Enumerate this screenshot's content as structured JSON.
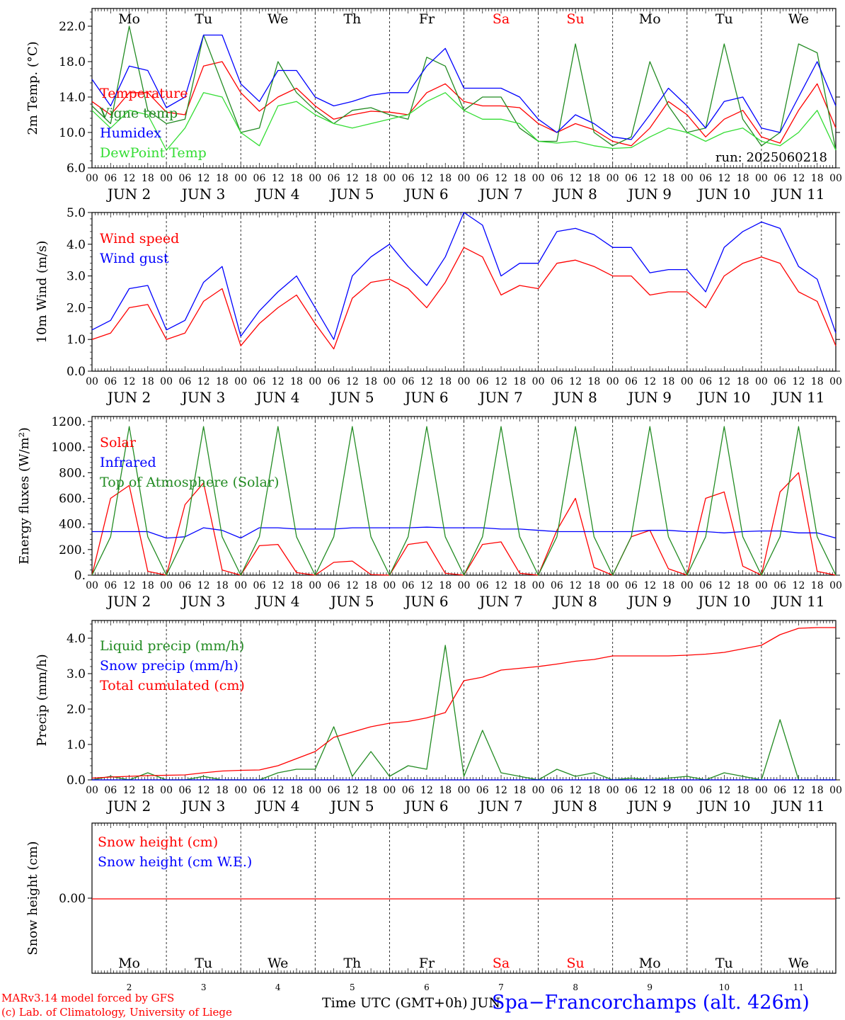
{
  "colors": {
    "red": "#ff0000",
    "green": "#228b22",
    "blue": "#0000ff",
    "lime": "#33dd33",
    "black": "#000000"
  },
  "days": {
    "weekday_labels": [
      "Mo",
      "Tu",
      "We",
      "Th",
      "Fr",
      "Sa",
      "Su",
      "Mo",
      "Tu",
      "We"
    ],
    "weekend_flags": [
      false,
      false,
      false,
      false,
      false,
      true,
      true,
      false,
      false,
      false
    ],
    "date_labels": [
      "JUN  2",
      "JUN  3",
      "JUN  4",
      "JUN  5",
      "JUN  6",
      "JUN  7",
      "JUN  8",
      "JUN  9",
      "JUN 10",
      "JUN 11"
    ],
    "bottom_day_numbers": [
      "2",
      "3",
      "4",
      "5",
      "6",
      "7",
      "8",
      "9",
      "10",
      "11"
    ],
    "hour_ticks": [
      "00",
      "06",
      "12",
      "18"
    ],
    "final_tick": "00"
  },
  "run_label": "run: 2025060218",
  "footer": {
    "credit_line1": "MARv3.14 model forced by GFS",
    "credit_line2": "(c) Lab. of Climatology, University of Liege",
    "time_axis": "Time UTC (GMT+0h) JUN",
    "station": "Spa−Francorchamps (alt. 426m)"
  },
  "chart_data": [
    {
      "type": "line",
      "ylabel": "2m Temp. (°C)",
      "ylim": [
        6.0,
        24.0
      ],
      "yticks": [
        6.0,
        10.0,
        14.0,
        18.0,
        22.0
      ],
      "ytick_labels": [
        "6.0",
        "10.0",
        "14.0",
        "18.0",
        "22.0"
      ],
      "x_unit": "hours since JUN 2 00 UTC",
      "x_step_hours": 6,
      "series": [
        {
          "name": "Temperature",
          "color": "#ff0000",
          "values": [
            13.5,
            12.0,
            14.5,
            14.5,
            12.3,
            12.0,
            17.5,
            18.0,
            14.5,
            12.4,
            14.0,
            15.0,
            13.0,
            11.5,
            12.0,
            12.4,
            12.3,
            12.0,
            14.5,
            15.5,
            13.5,
            13.0,
            13.0,
            12.8,
            11.0,
            10.0,
            11.0,
            10.3,
            9.0,
            8.5,
            10.5,
            13.5,
            12.0,
            9.5,
            11.5,
            12.5,
            9.5,
            8.8,
            12.5,
            15.5,
            10.5
          ]
        },
        {
          "name": "Vigne temp",
          "color": "#228b22",
          "values": [
            13.0,
            11.0,
            22.0,
            12.5,
            11.0,
            11.5,
            21.0,
            15.5,
            10.0,
            10.5,
            18.0,
            14.5,
            12.5,
            11.0,
            12.5,
            12.8,
            12.0,
            11.5,
            18.5,
            17.5,
            12.5,
            14.0,
            14.0,
            10.5,
            9.0,
            9.0,
            20.0,
            10.0,
            8.5,
            9.5,
            18.0,
            13.0,
            10.0,
            10.5,
            20.0,
            11.5,
            8.5,
            10.0,
            20.0,
            19.0,
            8.0
          ]
        },
        {
          "name": "Humidex",
          "color": "#0000ff",
          "values": [
            16.0,
            13.0,
            17.5,
            17.0,
            12.8,
            14.0,
            21.0,
            21.0,
            15.5,
            13.5,
            17.0,
            17.0,
            14.0,
            13.0,
            13.5,
            14.2,
            14.5,
            14.5,
            17.5,
            19.5,
            15.0,
            15.0,
            15.0,
            14.0,
            11.5,
            10.0,
            12.0,
            11.0,
            9.5,
            9.2,
            12.0,
            15.0,
            13.0,
            10.5,
            13.5,
            14.0,
            10.5,
            10.0,
            14.0,
            18.0,
            13.0
          ]
        },
        {
          "name": "DewPoint Temp",
          "color": "#33dd33",
          "values": [
            12.5,
            10.5,
            12.5,
            12.0,
            8.0,
            10.5,
            14.5,
            14.0,
            10.0,
            8.5,
            13.0,
            13.5,
            12.0,
            11.0,
            10.5,
            11.0,
            11.5,
            12.0,
            13.5,
            14.5,
            12.5,
            11.5,
            11.5,
            11.0,
            9.0,
            8.8,
            9.0,
            8.5,
            8.2,
            8.3,
            9.5,
            10.5,
            10.0,
            9.0,
            10.0,
            10.5,
            9.0,
            8.5,
            10.0,
            12.5,
            8.0
          ]
        }
      ]
    },
    {
      "type": "line",
      "ylabel": "10m Wind (m/s)",
      "ylim": [
        0.0,
        5.0
      ],
      "yticks": [
        0.0,
        1.0,
        2.0,
        3.0,
        4.0,
        5.0
      ],
      "ytick_labels": [
        "0.0",
        "1.0",
        "2.0",
        "3.0",
        "4.0",
        "5.0"
      ],
      "x_unit": "hours since JUN 2 00 UTC",
      "x_step_hours": 6,
      "series": [
        {
          "name": "Wind speed",
          "color": "#ff0000",
          "values": [
            1.0,
            1.2,
            2.0,
            2.1,
            1.0,
            1.2,
            2.2,
            2.6,
            0.8,
            1.5,
            2.0,
            2.4,
            1.5,
            0.7,
            2.3,
            2.8,
            2.9,
            2.6,
            2.0,
            2.8,
            3.9,
            3.6,
            2.4,
            2.7,
            2.6,
            3.4,
            3.5,
            3.3,
            3.0,
            3.0,
            2.4,
            2.5,
            2.5,
            2.0,
            3.0,
            3.4,
            3.6,
            3.4,
            2.5,
            2.2,
            0.8
          ]
        },
        {
          "name": "Wind gust",
          "color": "#0000ff",
          "values": [
            1.3,
            1.6,
            2.6,
            2.7,
            1.3,
            1.6,
            2.8,
            3.3,
            1.1,
            1.9,
            2.5,
            3.0,
            2.0,
            1.0,
            3.0,
            3.6,
            4.0,
            3.3,
            2.7,
            3.6,
            5.0,
            4.6,
            3.0,
            3.4,
            3.4,
            4.4,
            4.5,
            4.3,
            3.9,
            3.9,
            3.1,
            3.2,
            3.2,
            2.5,
            3.9,
            4.4,
            4.7,
            4.5,
            3.3,
            2.9,
            1.2
          ]
        }
      ]
    },
    {
      "type": "line",
      "ylabel": "Energy fluxes (W/m²)",
      "ylim": [
        0,
        1200
      ],
      "yticks": [
        0,
        200,
        400,
        600,
        800,
        1000,
        1200
      ],
      "ytick_labels": [
        "0.",
        "200.",
        "400.",
        "600.",
        "800.",
        "1000.",
        "1200."
      ],
      "x_unit": "hours since JUN 2 00 UTC",
      "x_step_hours": 6,
      "series": [
        {
          "name": "Solar",
          "color": "#ff0000",
          "values": [
            0,
            600,
            700,
            30,
            0,
            550,
            720,
            40,
            0,
            230,
            240,
            20,
            0,
            100,
            110,
            5,
            0,
            240,
            260,
            15,
            0,
            240,
            260,
            15,
            0,
            350,
            600,
            60,
            0,
            300,
            350,
            50,
            0,
            600,
            650,
            70,
            0,
            650,
            800,
            30,
            0
          ]
        },
        {
          "name": "Infrared",
          "color": "#0000ff",
          "values": [
            340,
            340,
            340,
            340,
            290,
            300,
            370,
            350,
            290,
            370,
            370,
            360,
            360,
            360,
            370,
            370,
            370,
            370,
            375,
            370,
            370,
            370,
            360,
            360,
            350,
            340,
            340,
            340,
            340,
            340,
            350,
            350,
            340,
            340,
            330,
            340,
            345,
            345,
            330,
            330,
            290
          ]
        },
        {
          "name": "Top of Atmosphere (Solar)",
          "color": "#228b22",
          "values": [
            0,
            300,
            1160,
            300,
            0,
            300,
            1160,
            300,
            0,
            300,
            1160,
            300,
            0,
            300,
            1160,
            300,
            0,
            300,
            1160,
            300,
            0,
            300,
            1160,
            300,
            0,
            300,
            1160,
            300,
            0,
            300,
            1160,
            300,
            0,
            300,
            1160,
            300,
            0,
            300,
            1160,
            300,
            0
          ]
        }
      ]
    },
    {
      "type": "line",
      "ylabel": "Precip (mm/h)",
      "ylim": [
        0.0,
        4.5
      ],
      "yticks": [
        0.0,
        1.0,
        2.0,
        3.0,
        4.0
      ],
      "ytick_labels": [
        "0.0",
        "1.0",
        "2.0",
        "3.0",
        "4.0"
      ],
      "x_unit": "hours since JUN 2 00 UTC",
      "x_step_hours": 6,
      "series": [
        {
          "name": "Liquid precip (mm/h)",
          "color": "#228b22",
          "values": [
            0.0,
            0.1,
            0.0,
            0.2,
            0.0,
            0.0,
            0.1,
            0.0,
            0.0,
            0.0,
            0.2,
            0.3,
            0.3,
            1.5,
            0.1,
            0.8,
            0.1,
            0.4,
            0.3,
            3.8,
            0.1,
            1.4,
            0.2,
            0.1,
            0.0,
            0.3,
            0.1,
            0.2,
            0.0,
            0.05,
            0.0,
            0.05,
            0.1,
            0.0,
            0.2,
            0.1,
            0.0,
            1.7,
            0.0,
            0.0,
            0.0
          ]
        },
        {
          "name": "Snow precip (mm/h)",
          "color": "#0000ff",
          "values": [
            0,
            0,
            0,
            0,
            0,
            0,
            0,
            0,
            0,
            0,
            0,
            0,
            0,
            0,
            0,
            0,
            0,
            0,
            0,
            0,
            0,
            0,
            0,
            0,
            0,
            0,
            0,
            0,
            0,
            0,
            0,
            0,
            0,
            0,
            0,
            0,
            0,
            0,
            0,
            0,
            0
          ]
        },
        {
          "name": "Total cumulated (cm)",
          "color": "#ff0000",
          "values": [
            0.05,
            0.08,
            0.1,
            0.12,
            0.13,
            0.14,
            0.2,
            0.25,
            0.27,
            0.28,
            0.4,
            0.6,
            0.8,
            1.2,
            1.35,
            1.5,
            1.6,
            1.65,
            1.75,
            1.9,
            2.8,
            2.9,
            3.1,
            3.15,
            3.2,
            3.27,
            3.35,
            3.4,
            3.5,
            3.5,
            3.5,
            3.5,
            3.52,
            3.55,
            3.6,
            3.7,
            3.8,
            4.1,
            4.28,
            4.3,
            4.3
          ]
        }
      ]
    },
    {
      "type": "line",
      "ylabel": "Snow height (cm)",
      "yticks": [
        0.0
      ],
      "ytick_labels": [
        "0.00"
      ],
      "x_unit": "hours since JUN 2 00 UTC",
      "x_step_hours": 6,
      "series": [
        {
          "name": "Snow height (cm)",
          "color": "#ff0000",
          "values": [
            0,
            0,
            0,
            0,
            0,
            0,
            0,
            0,
            0,
            0,
            0,
            0,
            0,
            0,
            0,
            0,
            0,
            0,
            0,
            0,
            0,
            0,
            0,
            0,
            0,
            0,
            0,
            0,
            0,
            0,
            0,
            0,
            0,
            0,
            0,
            0,
            0,
            0,
            0,
            0,
            0
          ]
        },
        {
          "name": "Snow height (cm W.E.)",
          "color": "#0000ff",
          "values": []
        }
      ]
    }
  ]
}
